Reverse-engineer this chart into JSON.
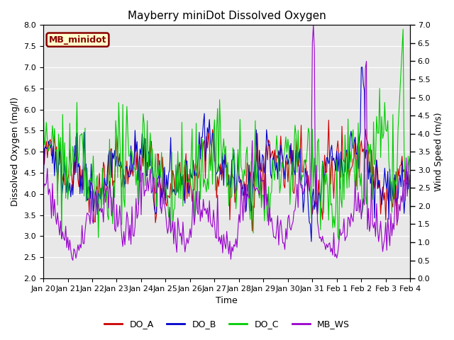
{
  "title": "Mayberry miniDot Dissolved Oxygen",
  "ylabel_left": "Dissolved Oxygen (mg/l)",
  "ylabel_right": "Wind Speed (m/s)",
  "xlabel": "Time",
  "ylim_left": [
    2.0,
    8.0
  ],
  "ylim_right": [
    0.0,
    7.0
  ],
  "line_colors": {
    "DO_A": "#cc0000",
    "DO_B": "#0000cc",
    "DO_C": "#00cc00",
    "MB_WS": "#9900cc"
  },
  "legend_box_label": "MB_minidot",
  "legend_box_facecolor": "#ffffcc",
  "legend_box_edgecolor": "#880000",
  "plot_bg_color": "#e8e8e8",
  "fig_bg_color": "#ffffff",
  "title_fontsize": 11,
  "axis_label_fontsize": 9,
  "tick_fontsize": 8,
  "legend_fontsize": 9,
  "linewidth": 0.8,
  "yticks_left": [
    2.0,
    2.5,
    3.0,
    3.5,
    4.0,
    4.5,
    5.0,
    5.5,
    6.0,
    6.5,
    7.0,
    7.5,
    8.0
  ],
  "yticks_right": [
    0.0,
    0.5,
    1.0,
    1.5,
    2.0,
    2.5,
    3.0,
    3.5,
    4.0,
    4.5,
    5.0,
    5.5,
    6.0,
    6.5,
    7.0
  ]
}
